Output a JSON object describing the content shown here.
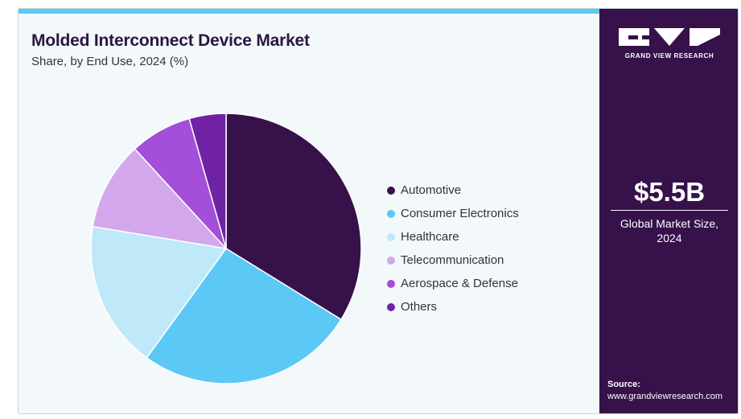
{
  "header": {
    "title": "Molded Interconnect Device Market",
    "subtitle": "Share, by End Use, 2024 (%)"
  },
  "brand": {
    "name": "GRAND VIEW RESEARCH",
    "logo_icon": "gvr-logo-icon"
  },
  "stat": {
    "value": "$5.5B",
    "label_line1": "Global Market Size,",
    "label_line2": "2024"
  },
  "source": {
    "label": "Source:",
    "url": "www.grandviewresearch.com"
  },
  "chart_data": {
    "type": "pie",
    "title": "Molded Interconnect Device Market",
    "subtitle": "Share, by End Use, 2024 (%)",
    "legend_position": "right",
    "start_angle_deg": 0,
    "direction": "clockwise",
    "categories": [
      "Automotive",
      "Consumer Electronics",
      "Healthcare",
      "Telecommunication",
      "Aerospace & Defense",
      "Others"
    ],
    "values": [
      33.8,
      26.2,
      17.6,
      10.6,
      7.4,
      4.4
    ],
    "colors": [
      "#36114a",
      "#5bc8f5",
      "#bfe9f9",
      "#d3a7ec",
      "#a34fd9",
      "#7022a4"
    ]
  }
}
